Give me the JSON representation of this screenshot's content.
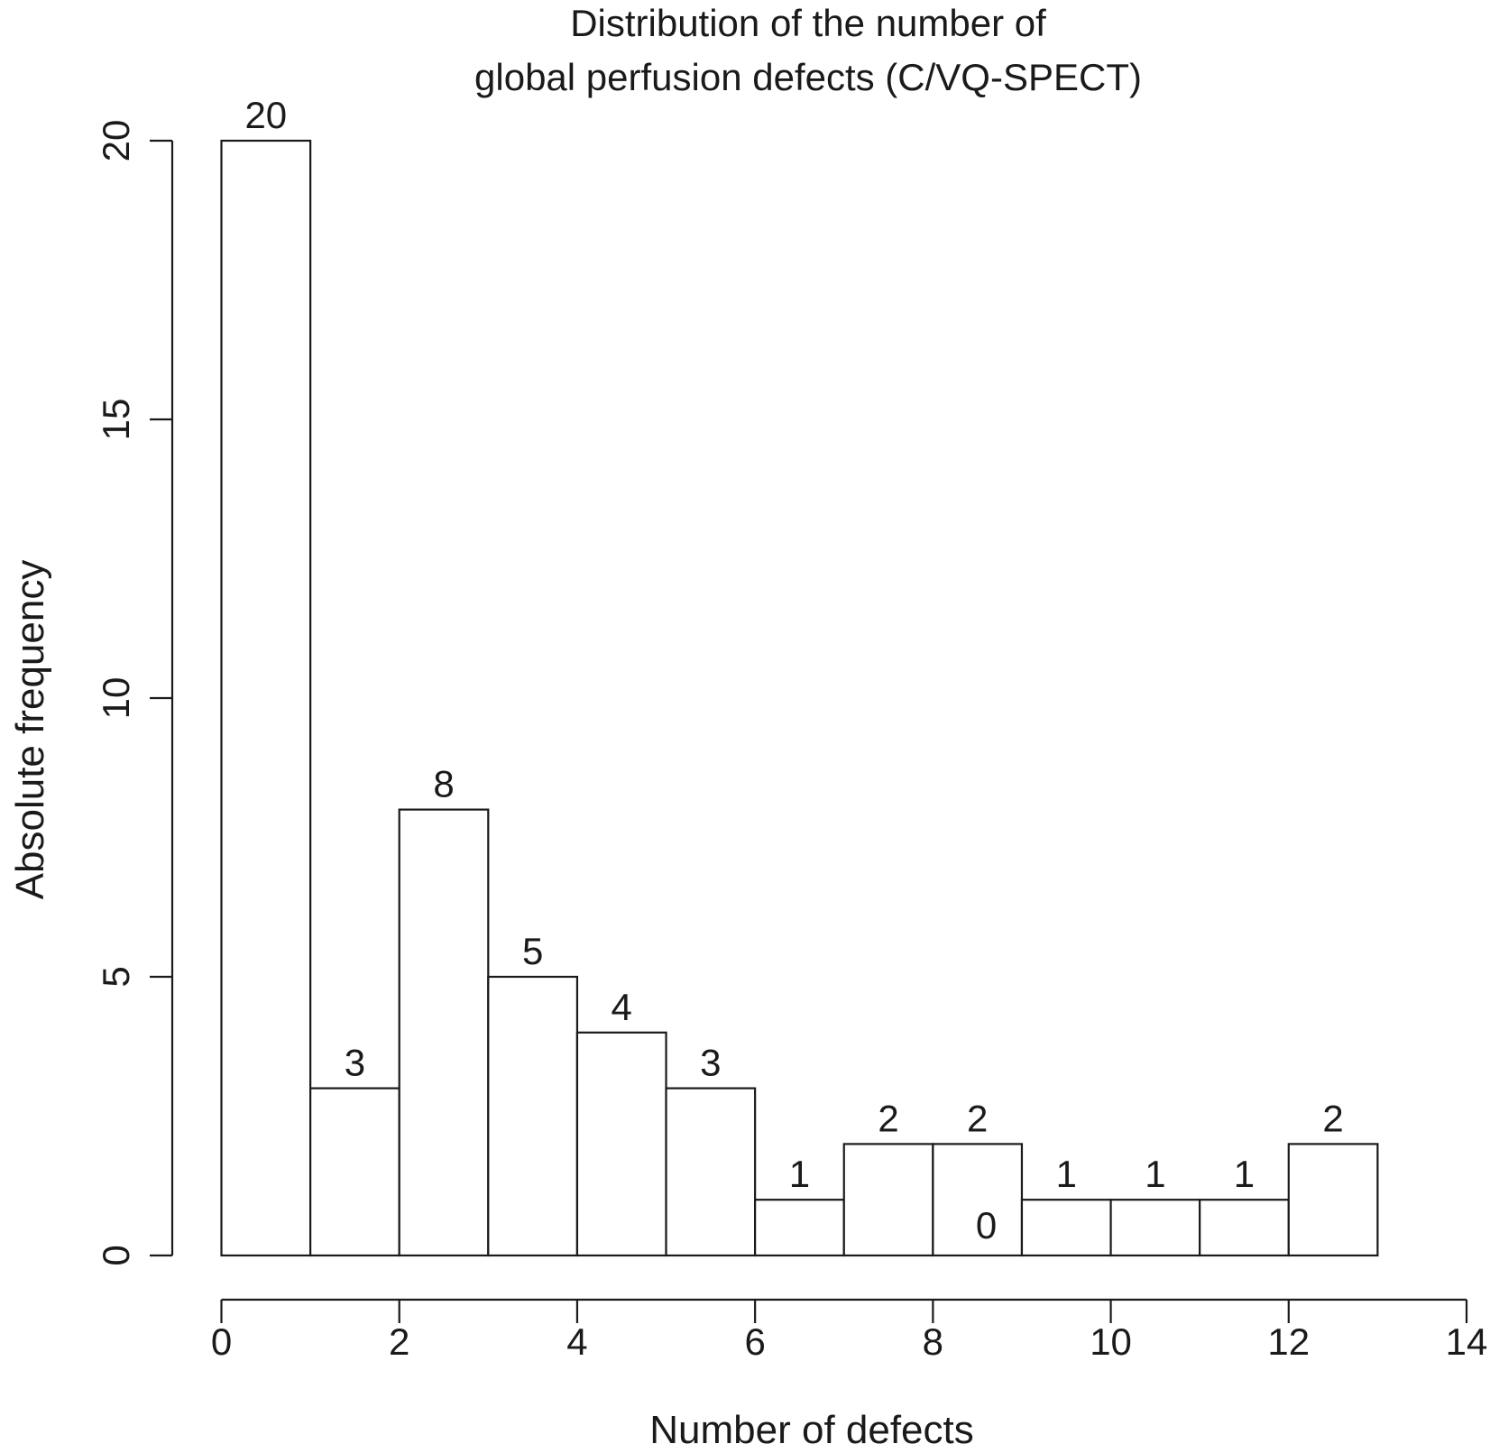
{
  "chart_data": {
    "type": "bar",
    "title": [
      "Distribution of the number of",
      "global perfusion defects (C/VQ-SPECT)"
    ],
    "xlabel": "Number of defects",
    "ylabel": "Absolute frequency",
    "bin_edges": [
      0,
      1,
      2,
      3,
      4,
      5,
      6,
      7,
      8,
      9,
      10,
      11,
      12,
      13
    ],
    "values": [
      20,
      3,
      8,
      5,
      4,
      3,
      1,
      2,
      2,
      1,
      1,
      1,
      2
    ],
    "data_labels": [
      "20",
      "3",
      "8",
      "5",
      "4",
      "3",
      "1",
      "2",
      "2",
      "1",
      "1",
      "1",
      "2"
    ],
    "annotations": [
      {
        "text": "0",
        "x": 8.6,
        "y": 0.55
      }
    ],
    "xlim": [
      0,
      14
    ],
    "ylim": [
      0,
      20
    ],
    "xticks": [
      "0",
      "2",
      "4",
      "6",
      "8",
      "10",
      "12",
      "14"
    ],
    "yticks": [
      "0",
      "5",
      "10",
      "15",
      "20"
    ],
    "grid": false,
    "bar_fill": "#ffffff",
    "line_color": "#1a1a1a"
  }
}
